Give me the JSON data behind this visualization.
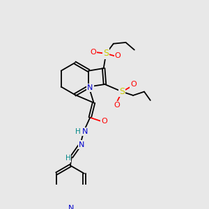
{
  "bg_color": "#e8e8e8",
  "figsize": [
    3.0,
    3.0
  ],
  "dpi": 100,
  "atom_colors": {
    "C": "#000000",
    "N": "#0000cc",
    "O": "#ff0000",
    "S": "#cccc00",
    "H": "#008888"
  },
  "lw": 1.3
}
